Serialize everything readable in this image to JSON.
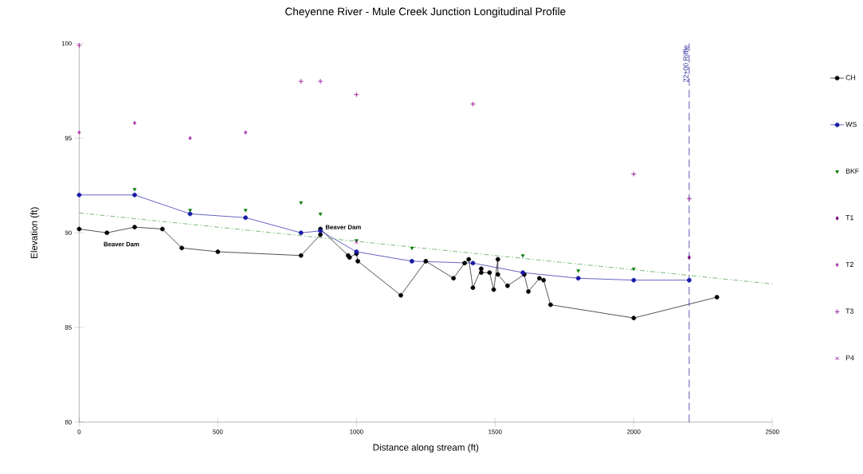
{
  "chart_data": {
    "type": "line",
    "title": "Cheyenne River - Mule Creek Junction   Longitudinal Profile",
    "xlabel": "Distance along stream (ft)",
    "ylabel": "Elevation (ft)",
    "xlim": [
      0,
      2500
    ],
    "ylim": [
      80,
      100
    ],
    "xticks": [
      0,
      500,
      1000,
      1500,
      2000,
      2500
    ],
    "yticks": [
      80,
      85,
      90,
      95,
      100
    ],
    "grid": false,
    "legend": "right",
    "series": [
      {
        "name": "CH",
        "type": "line",
        "color": "#000000",
        "marker": "circle",
        "x": [
          0,
          100,
          200,
          300,
          370,
          500,
          800,
          870,
          870,
          970,
          975,
          1000,
          1005,
          1160,
          1250,
          1350,
          1390,
          1405,
          1420,
          1450,
          1450,
          1480,
          1495,
          1510,
          1510,
          1545,
          1605,
          1620,
          1660,
          1675,
          1700,
          2000,
          2300
        ],
        "values": [
          90.2,
          90.0,
          90.3,
          90.2,
          89.2,
          89.0,
          88.8,
          89.9,
          90.2,
          88.8,
          88.7,
          88.9,
          88.5,
          86.7,
          88.5,
          87.6,
          88.4,
          88.6,
          87.1,
          88.1,
          87.9,
          87.9,
          87.0,
          88.6,
          87.8,
          87.2,
          87.8,
          86.9,
          87.6,
          87.5,
          86.2,
          85.5,
          86.6
        ]
      },
      {
        "name": "WS",
        "type": "line",
        "color": "#1a1aa6",
        "marker": "circle",
        "x": [
          0,
          200,
          400,
          600,
          800,
          870,
          1000,
          1200,
          1420,
          1600,
          1800,
          2000,
          2200
        ],
        "values": [
          92.0,
          92.0,
          91.0,
          90.8,
          90.0,
          90.1,
          89.0,
          88.5,
          88.4,
          87.9,
          87.6,
          87.5,
          87.5
        ]
      },
      {
        "name": "BKF",
        "type": "scatter",
        "color": "#007a00",
        "marker": "triangle",
        "x": [
          200,
          400,
          600,
          800,
          870,
          1000,
          1200,
          1600,
          1800,
          2000
        ],
        "values": [
          92.3,
          91.2,
          91.2,
          91.6,
          91.0,
          89.6,
          89.2,
          88.8,
          88.0,
          88.1
        ]
      },
      {
        "name": "T1",
        "type": "scatter",
        "color": "#7a0a7a",
        "marker": "diamond",
        "x": [
          2200
        ],
        "values": [
          88.7
        ]
      },
      {
        "name": "T2",
        "type": "scatter",
        "color": "#b040b0",
        "marker": "diamond",
        "x": [
          0,
          200,
          400,
          600
        ],
        "values": [
          95.3,
          95.8,
          95.0,
          95.3
        ]
      },
      {
        "name": "T3",
        "type": "scatter",
        "color": "#a020a0",
        "marker": "plus",
        "x": [
          0,
          800,
          870,
          1000,
          1420,
          2000,
          2200
        ],
        "values": [
          99.9,
          98.0,
          98.0,
          97.3,
          96.8,
          93.1,
          91.8
        ]
      },
      {
        "name": "P4",
        "type": "scatter",
        "color": "#a020a0",
        "marker": "cross",
        "x": [
          1000
        ],
        "values": [
          89.5
        ]
      },
      {
        "color": "#3a9a3a",
        "marker": "none",
        "line_style": "dashdot",
        "x": [
          0,
          2500
        ],
        "values": [
          91.05,
          87.3
        ]
      }
    ],
    "ref_lines": [
      {
        "axis": "x",
        "value": 2200,
        "label": "22+00 Riffle",
        "color": "#2a2a9a",
        "line_style": "dashed"
      }
    ],
    "annotations": [
      "Beaver Dam",
      "Beaver Dam"
    ]
  }
}
